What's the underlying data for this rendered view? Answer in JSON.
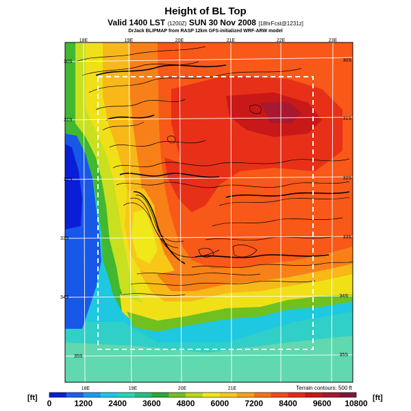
{
  "header": {
    "title": "Height of BL Top",
    "subtitle_main": "Valid 1400 LST",
    "subtitle_utc": "(1200Z)",
    "subtitle_date": "SUN 30 Nov 2008",
    "subtitle_fcst": "[18hrFcst@1231z]",
    "credit": "DrJack BLIPMAP from RASP 12km GFS-initialized WRF-ARW model"
  },
  "map": {
    "top_lon_labels": [
      "18E",
      "19E",
      "20E",
      "21E",
      "22E",
      "23E"
    ],
    "bottom_lon_labels": [
      "18E",
      "19E",
      "20E",
      "21E"
    ],
    "left_lat_labels": [
      "30S",
      "31S",
      "32S",
      "33S",
      "34S",
      "35S"
    ],
    "right_lat_labels": [
      "30S",
      "31S",
      "32S",
      "33S",
      "34S",
      "35S"
    ],
    "terrain_note": "Terrain contours: 500 ft"
  },
  "colorbar": {
    "unit": "[ft]",
    "min": 0,
    "max": 10800,
    "step": 600,
    "labels": [
      "0",
      "1200",
      "2400",
      "3600",
      "4800",
      "6000",
      "7200",
      "8400",
      "9600",
      "10800"
    ],
    "colors": [
      "#0a1ed8",
      "#1e5ef0",
      "#1a9af0",
      "#18c8e8",
      "#22d8b8",
      "#20c080",
      "#28a838",
      "#70c020",
      "#b8d818",
      "#f0e818",
      "#f8c818",
      "#f8a018",
      "#f87018",
      "#f84818",
      "#e82818",
      "#c81818",
      "#a81830",
      "#801838"
    ]
  }
}
